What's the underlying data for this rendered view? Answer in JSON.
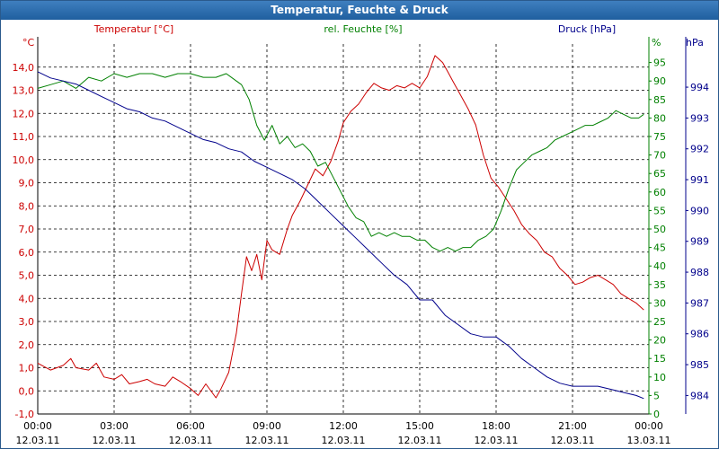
{
  "window_title": "Temperatur, Feuchte & Druck",
  "colors": {
    "temperature": "#cc0000",
    "humidity": "#008000",
    "pressure": "#00008b",
    "axis": "#000000",
    "grid": "#000000",
    "titlebar": "#2a62a0"
  },
  "chart_data": {
    "type": "line",
    "title": "Temperatur, Feuchte & Druck",
    "x_labels": [
      {
        "time": "00:00",
        "date": "12.03.11"
      },
      {
        "time": "03:00",
        "date": "12.03.11"
      },
      {
        "time": "06:00",
        "date": "12.03.11"
      },
      {
        "time": "09:00",
        "date": "12.03.11"
      },
      {
        "time": "12:00",
        "date": "12.03.11"
      },
      {
        "time": "15:00",
        "date": "12.03.11"
      },
      {
        "time": "18:00",
        "date": "12.03.11"
      },
      {
        "time": "21:00",
        "date": "12.03.11"
      },
      {
        "time": "00:00",
        "date": "13.03.11"
      }
    ],
    "xlim": [
      0,
      24
    ],
    "axes": {
      "temperature": {
        "label": "Temperatur [°C]",
        "unit": "°C",
        "min": -1,
        "max": 15,
        "ticks": [
          "-1,0",
          "0,0",
          "1,0",
          "2,0",
          "3,0",
          "4,0",
          "5,0",
          "6,0",
          "7,0",
          "8,0",
          "9,0",
          "10,0",
          "11,0",
          "12,0",
          "13,0",
          "14,0"
        ]
      },
      "humidity": {
        "label": "rel. Feuchte [%]",
        "unit": "%",
        "min": 0,
        "max": 100,
        "ticks": [
          "0",
          "5",
          "10",
          "15",
          "20",
          "25",
          "30",
          "35",
          "40",
          "45",
          "50",
          "55",
          "60",
          "65",
          "70",
          "75",
          "80",
          "85",
          "90",
          "95"
        ]
      },
      "pressure": {
        "label": "Druck [hPa]",
        "unit": "hPa",
        "min": 983.4,
        "max": 995.4,
        "ticks": [
          "984",
          "985",
          "986",
          "987",
          "988",
          "989",
          "990",
          "991",
          "992",
          "993",
          "994"
        ]
      }
    },
    "series": [
      {
        "name": "Temperatur",
        "axis": "temperature",
        "x": [
          0,
          0.5,
          1,
          1.3,
          1.5,
          2,
          2.3,
          2.6,
          3,
          3.3,
          3.6,
          4,
          4.3,
          4.6,
          5,
          5.3,
          5.6,
          6,
          6.3,
          6.6,
          7,
          7.2,
          7.5,
          7.8,
          8,
          8.2,
          8.4,
          8.6,
          8.8,
          9,
          9.2,
          9.5,
          9.8,
          10,
          10.3,
          10.6,
          10.9,
          11.2,
          11.5,
          11.8,
          12,
          12.3,
          12.6,
          12.9,
          13.2,
          13.5,
          13.8,
          14.1,
          14.4,
          14.7,
          15,
          15.3,
          15.6,
          15.9,
          16.1,
          16.3,
          16.6,
          16.9,
          17.2,
          17.5,
          17.8,
          18.1,
          18.4,
          18.7,
          19,
          19.3,
          19.6,
          19.9,
          20.2,
          20.5,
          20.8,
          21.1,
          21.4,
          21.7,
          22,
          22.3,
          22.6,
          22.9,
          23.2,
          23.5,
          23.8
        ],
        "y": [
          1.2,
          0.9,
          1.1,
          1.4,
          1.0,
          0.9,
          1.2,
          0.6,
          0.5,
          0.7,
          0.3,
          0.4,
          0.5,
          0.3,
          0.2,
          0.6,
          0.4,
          0.1,
          -0.2,
          0.3,
          -0.3,
          0.1,
          0.8,
          2.5,
          4.2,
          5.8,
          5.2,
          5.9,
          4.8,
          6.5,
          6.1,
          5.9,
          7.0,
          7.6,
          8.2,
          8.9,
          9.6,
          9.3,
          9.9,
          10.8,
          11.6,
          12.1,
          12.4,
          12.9,
          13.3,
          13.1,
          13.0,
          13.2,
          13.1,
          13.3,
          13.1,
          13.6,
          14.5,
          14.2,
          13.8,
          13.4,
          12.8,
          12.2,
          11.5,
          10.2,
          9.2,
          8.8,
          8.3,
          7.8,
          7.2,
          6.8,
          6.5,
          6.0,
          5.8,
          5.3,
          5.0,
          4.6,
          4.7,
          4.9,
          5.0,
          4.8,
          4.6,
          4.2,
          4.0,
          3.8,
          3.5
        ]
      },
      {
        "name": "rel. Feuchte",
        "axis": "humidity",
        "x": [
          0,
          0.5,
          1,
          1.5,
          2,
          2.5,
          3,
          3.5,
          4,
          4.5,
          5,
          5.5,
          6,
          6.5,
          7,
          7.4,
          7.8,
          8,
          8.3,
          8.6,
          8.9,
          9.2,
          9.5,
          9.8,
          10.1,
          10.4,
          10.7,
          11,
          11.3,
          11.6,
          11.9,
          12.2,
          12.5,
          12.8,
          13.1,
          13.4,
          13.7,
          14,
          14.3,
          14.6,
          14.9,
          15.2,
          15.5,
          15.8,
          16.1,
          16.4,
          16.7,
          17,
          17.3,
          17.6,
          17.9,
          18.2,
          18.5,
          18.8,
          19.1,
          19.4,
          19.7,
          20,
          20.3,
          20.6,
          20.9,
          21.2,
          21.5,
          21.8,
          22.1,
          22.4,
          22.7,
          23,
          23.3,
          23.6,
          23.8
        ],
        "y": [
          88,
          89,
          90,
          88,
          91,
          90,
          92,
          91,
          92,
          92,
          91,
          92,
          92,
          91,
          91,
          92,
          90,
          89,
          85,
          78,
          74,
          78,
          73,
          75,
          72,
          73,
          71,
          67,
          68,
          64,
          60,
          56,
          53,
          52,
          48,
          49,
          48,
          49,
          48,
          48,
          47,
          47,
          45,
          44,
          45,
          44,
          45,
          45,
          47,
          48,
          50,
          55,
          61,
          66,
          68,
          70,
          71,
          72,
          74,
          75,
          76,
          77,
          78,
          78,
          79,
          80,
          82,
          81,
          80,
          80,
          81
        ]
      },
      {
        "name": "Druck",
        "axis": "pressure",
        "x": [
          0,
          0.5,
          1,
          1.5,
          2,
          2.5,
          3,
          3.5,
          4,
          4.5,
          5,
          5.5,
          6,
          6.5,
          7,
          7.5,
          8,
          8.5,
          9,
          9.5,
          10,
          10.5,
          11,
          11.5,
          12,
          12.5,
          13,
          13.5,
          14,
          14.5,
          15,
          15.5,
          16,
          16.5,
          17,
          17.5,
          18,
          18.5,
          19,
          19.5,
          20,
          20.5,
          21,
          21.5,
          22,
          22.5,
          23,
          23.5,
          23.8
        ],
        "y": [
          994.5,
          994.3,
          994.2,
          994.1,
          993.9,
          993.7,
          993.5,
          993.3,
          993.2,
          993.0,
          992.9,
          992.7,
          992.5,
          992.3,
          992.2,
          992.0,
          991.9,
          991.6,
          991.4,
          991.2,
          991.0,
          990.7,
          990.3,
          989.9,
          989.5,
          989.1,
          988.7,
          988.3,
          987.9,
          987.6,
          987.1,
          987.1,
          986.6,
          986.3,
          986.0,
          985.9,
          985.9,
          985.6,
          985.2,
          984.9,
          984.6,
          984.4,
          984.3,
          984.3,
          984.3,
          984.2,
          984.1,
          984.0,
          983.9
        ]
      }
    ]
  }
}
